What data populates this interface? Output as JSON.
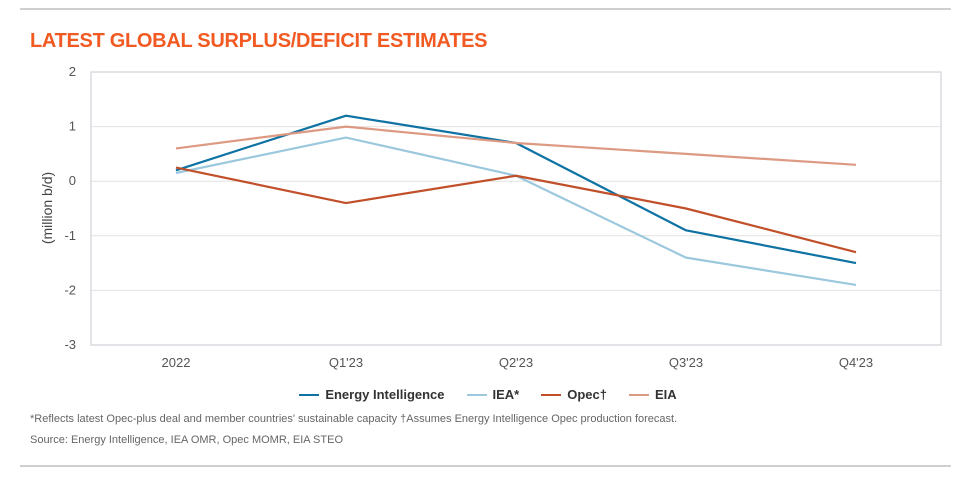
{
  "chart_data": {
    "type": "line",
    "title": "LATEST GLOBAL SURPLUS/DEFICIT ESTIMATES",
    "xlabel": "",
    "ylabel": "(million b/d)",
    "categories": [
      "2022",
      "Q1'23",
      "Q2'23",
      "Q3'23",
      "Q4'23"
    ],
    "ylim": [
      -3,
      2
    ],
    "yticks": [
      "2",
      "1",
      "0",
      "-1",
      "-2",
      "-3"
    ],
    "grid": true,
    "legend_position": "bottom-center",
    "series": [
      {
        "name": "Energy Intelligence",
        "color": "#0e72a3",
        "values": [
          0.2,
          1.2,
          0.7,
          -0.9,
          -1.5
        ]
      },
      {
        "name": "IEA*",
        "color": "#9cc8de",
        "values": [
          0.15,
          0.8,
          0.1,
          -1.4,
          -1.9
        ]
      },
      {
        "name": "Opec†",
        "color": "#c1502a",
        "values": [
          0.25,
          -0.4,
          0.1,
          -0.5,
          -1.3
        ]
      },
      {
        "name": "EIA",
        "color": "#dd9a83",
        "values": [
          0.6,
          1.0,
          0.7,
          0.5,
          0.3
        ]
      }
    ]
  },
  "footnote": "*Reflects latest Opec-plus deal and member countries' sustainable capacity †Assumes Energy Intelligence Opec production forecast.",
  "source": "Source: Energy Intelligence, IEA OMR, Opec MOMR, EIA STEO"
}
